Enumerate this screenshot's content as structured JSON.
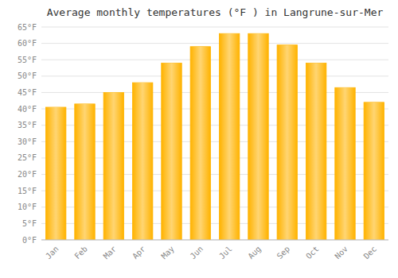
{
  "chart_data": {
    "type": "bar",
    "title": "Average monthly temperatures (°F ) in Langrune-sur-Mer",
    "categories": [
      "Jan",
      "Feb",
      "Mar",
      "Apr",
      "May",
      "Jun",
      "Jul",
      "Aug",
      "Sep",
      "Oct",
      "Nov",
      "Dec"
    ],
    "values": [
      40.5,
      41.5,
      45.0,
      48.0,
      54.0,
      59.0,
      63.0,
      63.0,
      59.5,
      54.0,
      46.5,
      42.0
    ],
    "color": "#FFB300",
    "ylim": [
      0,
      65
    ],
    "yticks": [
      {
        "value": 0,
        "label": "0°F"
      },
      {
        "value": 5,
        "label": "5°F"
      },
      {
        "value": 10,
        "label": "10°F"
      },
      {
        "value": 15,
        "label": "15°F"
      },
      {
        "value": 20,
        "label": "20°F"
      },
      {
        "value": 25,
        "label": "25°F"
      },
      {
        "value": 30,
        "label": "30°F"
      },
      {
        "value": 35,
        "label": "35°F"
      },
      {
        "value": 40,
        "label": "40°F"
      },
      {
        "value": 45,
        "label": "45°F"
      },
      {
        "value": 50,
        "label": "50°F"
      },
      {
        "value": 55,
        "label": "55°F"
      },
      {
        "value": 60,
        "label": "60°F"
      },
      {
        "value": 65,
        "label": "65°F"
      }
    ],
    "grid": true
  }
}
